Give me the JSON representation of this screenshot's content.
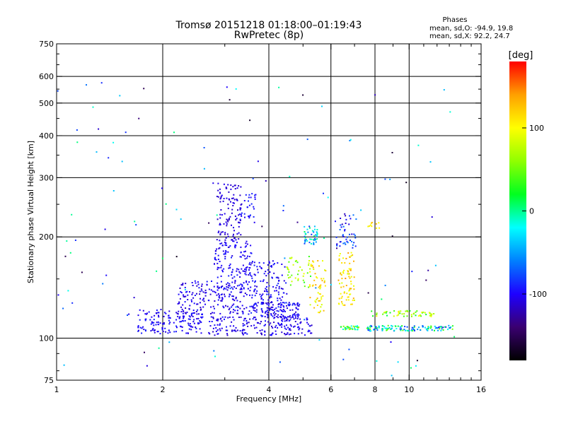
{
  "chart_data": {
    "type": "scatter",
    "title": "Tromsø 20151218 01:18:00–01:19:43",
    "subtitle": "RwPretec (8p)",
    "phase_box": {
      "heading": "Phases",
      "line_o": "mean, sd,O:  -94.9,  19.8",
      "line_x": "mean, sd,X:   92.2,  24.7"
    },
    "xlabel": "Frequency [MHz]",
    "ylabel": "Stationary phase Virtual Height [km]",
    "x_scale": "log",
    "y_scale": "log",
    "xlim": [
      1,
      16
    ],
    "ylim": [
      75,
      750
    ],
    "x_ticks": [
      1,
      2,
      4,
      6,
      8,
      10,
      16
    ],
    "x_tick_labels": [
      "1",
      "2",
      "4",
      "6",
      "8",
      "10",
      "16"
    ],
    "x_minor_ticks": [
      3,
      5,
      7,
      9,
      11,
      12,
      13,
      14,
      15
    ],
    "y_ticks": [
      75,
      100,
      200,
      300,
      400,
      500,
      600,
      750
    ],
    "y_tick_labels": [
      "75",
      "100",
      "200",
      "300",
      "400",
      "500",
      "600",
      "750"
    ],
    "y_minor_ticks": [
      80,
      90,
      150,
      250,
      350,
      450,
      550,
      650,
      700
    ],
    "grid": true,
    "grid_x": [
      2,
      4,
      6,
      8,
      10
    ],
    "grid_y": [
      100,
      200,
      300,
      400,
      500,
      600
    ],
    "colorbar": {
      "label": "[deg]",
      "range": [
        -180,
        180
      ],
      "ticks": [
        100,
        0,
        -100
      ],
      "tick_labels": [
        "100",
        "0",
        "-100"
      ],
      "colormap": [
        "#000000",
        "#3a0070",
        "#1e00ff",
        "#0080ff",
        "#00ffff",
        "#00ff20",
        "#90ff00",
        "#ffff00",
        "#ffa000",
        "#ff0000"
      ]
    },
    "clusters": [
      {
        "x": [
          1.7,
          2.6
        ],
        "y": [
          103,
          122
        ],
        "n": 160,
        "phase": -100,
        "spread": 12
      },
      {
        "x": [
          2.2,
          3.5
        ],
        "y": [
          118,
          148
        ],
        "n": 180,
        "phase": -105,
        "spread": 12
      },
      {
        "x": [
          2.8,
          3.6
        ],
        "y": [
          140,
          195
        ],
        "n": 140,
        "phase": -100,
        "spread": 10
      },
      {
        "x": [
          2.85,
          3.35
        ],
        "y": [
          195,
          290
        ],
        "n": 110,
        "phase": -110,
        "spread": 8
      },
      {
        "x": [
          3.3,
          3.7
        ],
        "y": [
          220,
          270
        ],
        "n": 30,
        "phase": -95,
        "spread": 10
      },
      {
        "x": [
          2.7,
          5.3
        ],
        "y": [
          102,
          116
        ],
        "n": 200,
        "phase": -105,
        "spread": 12
      },
      {
        "x": [
          3.5,
          4.9
        ],
        "y": [
          115,
          128
        ],
        "n": 140,
        "phase": -100,
        "spread": 15
      },
      {
        "x": [
          3.5,
          4.5
        ],
        "y": [
          128,
          170
        ],
        "n": 110,
        "phase": -100,
        "spread": 12
      },
      {
        "x": [
          4.5,
          5.3
        ],
        "y": [
          140,
          175
        ],
        "n": 40,
        "phase": 60,
        "spread": 40
      },
      {
        "x": [
          5.0,
          5.5
        ],
        "y": [
          190,
          215
        ],
        "n": 45,
        "phase": -40,
        "spread": 50
      },
      {
        "x": [
          5.2,
          5.8
        ],
        "y": [
          118,
          170
        ],
        "n": 55,
        "phase": 110,
        "spread": 30
      },
      {
        "x": [
          6.2,
          7.1
        ],
        "y": [
          185,
          235
        ],
        "n": 45,
        "phase": -90,
        "spread": 30
      },
      {
        "x": [
          6.3,
          7.0
        ],
        "y": [
          125,
          180
        ],
        "n": 75,
        "phase": 115,
        "spread": 30
      },
      {
        "x": [
          6.4,
          7.2
        ],
        "y": [
          106,
          109
        ],
        "n": 35,
        "phase": 20,
        "spread": 50
      },
      {
        "x": [
          7.6,
          8.3
        ],
        "y": [
          212,
          224
        ],
        "n": 10,
        "phase": 110,
        "spread": 20
      },
      {
        "x": [
          7.6,
          13.3
        ],
        "y": [
          105,
          109
        ],
        "n": 120,
        "phase": -20,
        "spread": 80
      },
      {
        "x": [
          7.8,
          11.8
        ],
        "y": [
          116,
          121
        ],
        "n": 55,
        "phase": 60,
        "spread": 50
      },
      {
        "x": [
          1.0,
          13.5
        ],
        "y": [
          76,
          600
        ],
        "n": 120,
        "phase": -80,
        "spread": 90
      }
    ]
  }
}
